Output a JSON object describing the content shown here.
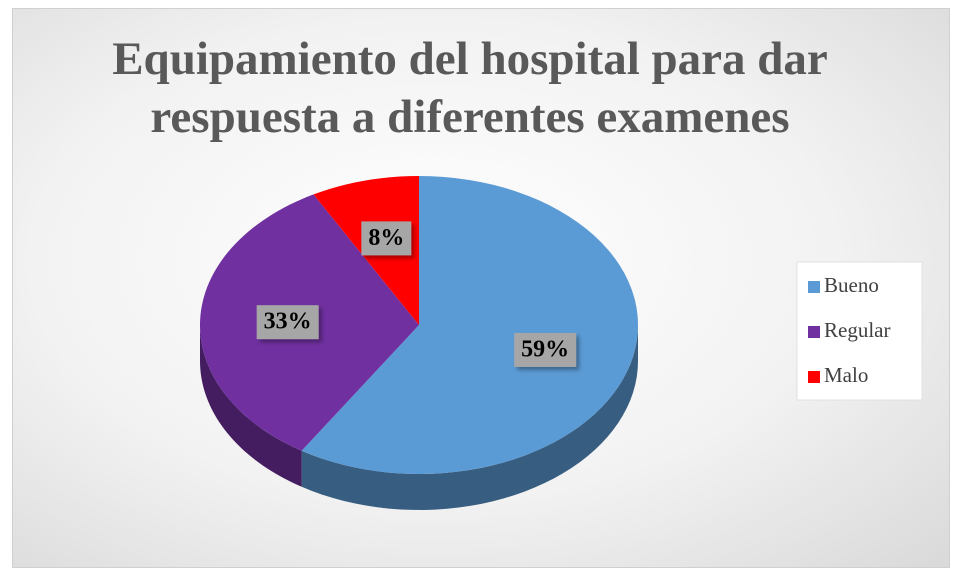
{
  "chart_data": {
    "type": "pie",
    "title": "Equipamiento del hospital para dar respuesta a diferentes examenes",
    "categories": [
      "Bueno",
      "Regular",
      "Malo"
    ],
    "values": [
      59,
      33,
      8
    ],
    "value_labels": [
      "59%",
      "33%",
      "8%"
    ],
    "colors": [
      "#5b9bd5",
      "#7030a0",
      "#ff0000"
    ],
    "legend": "right"
  }
}
